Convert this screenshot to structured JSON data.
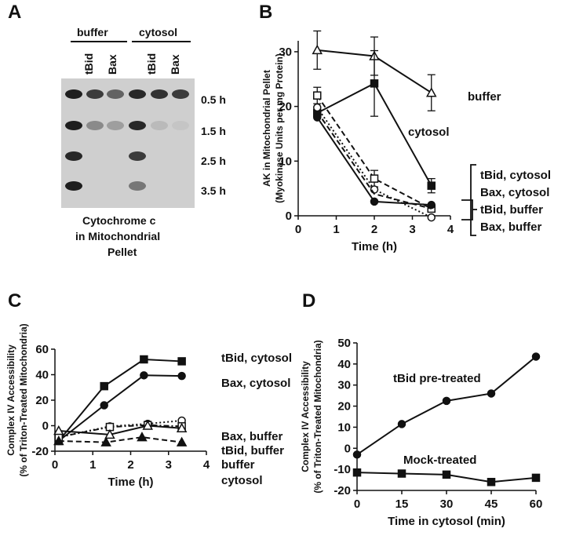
{
  "panels": {
    "A": {
      "letter": "A",
      "groups": [
        "buffer",
        "cytosol"
      ],
      "lanes": [
        "tBid",
        "Bax",
        "tBid",
        "Bax"
      ],
      "times": [
        "0.5 h",
        "1.5 h",
        "2.5 h",
        "3.5 h"
      ],
      "caption": [
        "Cytochrome c",
        "in Mitochondrial",
        "Pellet"
      ],
      "band_intensity": [
        [
          0.9,
          0.75,
          0.55,
          0.85,
          0.8,
          0.75
        ],
        [
          0.9,
          0.35,
          0.25,
          0.85,
          0.1,
          0.05
        ],
        [
          0.85,
          0.0,
          0.0,
          0.75,
          0.0,
          0.0
        ],
        [
          0.9,
          0.0,
          0.0,
          0.45,
          0.0,
          0.0
        ]
      ]
    },
    "B": {
      "letter": "B",
      "group_label": [
        "tBid, cytosol",
        "Bax, cytosol",
        "tBid, buffer",
        "Bax, buffer"
      ]
    },
    "C": {
      "letter": "C"
    },
    "D": {
      "letter": "D"
    }
  },
  "chart_data": [
    {
      "panel": "B",
      "type": "line",
      "ylabel": "AK in Mitochondrial Pellet",
      "ylabel2": "(Myokinase Units per mg Protein)",
      "xlabel": "Time (h)",
      "xlim": [
        0,
        4
      ],
      "ylim": [
        0,
        32
      ],
      "xticks": [
        0,
        1,
        2,
        3,
        4
      ],
      "yticks": [
        0,
        10,
        20,
        30
      ],
      "series": [
        {
          "name": "buffer",
          "marker": "triangle-open",
          "dash": "solid",
          "x": [
            0.5,
            2.0,
            3.5
          ],
          "y": [
            30.3,
            29.2,
            22.5
          ],
          "err": [
            3.5,
            3.5,
            3.3
          ]
        },
        {
          "name": "cytosol",
          "marker": "square-filled",
          "dash": "solid",
          "x": [
            0.5,
            2.0,
            3.5
          ],
          "y": [
            18.8,
            24.2,
            5.5
          ],
          "err": [
            0,
            6.0,
            1.3
          ]
        },
        {
          "marker": "square-open",
          "dash": "dashed",
          "x": [
            0.5,
            2.0,
            3.5
          ],
          "y": [
            22.0,
            6.8,
            1.3
          ],
          "err": [
            1.5,
            1.5,
            0
          ]
        },
        {
          "marker": "circle-open",
          "dash": "dotted",
          "x": [
            0.5,
            2.0,
            3.5
          ],
          "y": [
            19.8,
            4.8,
            -0.3
          ],
          "err": [
            0,
            0,
            0
          ]
        },
        {
          "marker": "circle-filled",
          "dash": "solid",
          "x": [
            0.5,
            2.0,
            3.5
          ],
          "y": [
            18.0,
            2.6,
            2.0
          ],
          "err": [
            0,
            0,
            0
          ]
        },
        {
          "marker": "none",
          "dash": "dashed",
          "x": [
            0.5,
            2.0,
            3.5
          ],
          "y": [
            19.0,
            4.0,
            1.3
          ],
          "err": [
            0,
            0,
            0
          ]
        }
      ]
    },
    {
      "panel": "C",
      "type": "line",
      "ylabel": "Complex IV Accessibility",
      "ylabel2": "(% of Triton-Treated Mitochondria)",
      "xlabel": "Time (h)",
      "xlim": [
        0,
        4
      ],
      "ylim": [
        -20,
        60
      ],
      "xticks": [
        0,
        1,
        2,
        3,
        4
      ],
      "yticks": [
        -20,
        0,
        20,
        40,
        60
      ],
      "series": [
        {
          "name": "tBid, cytosol",
          "marker": "square-filled",
          "dash": "solid",
          "x": [
            0.1,
            1.3,
            2.35,
            3.35
          ],
          "y": [
            -12,
            31,
            52,
            50.5
          ]
        },
        {
          "name": "Bax, cytosol",
          "marker": "circle-filled",
          "dash": "solid",
          "x": [
            0.1,
            1.3,
            2.35,
            3.35
          ],
          "y": [
            -12,
            16,
            39.5,
            39
          ]
        },
        {
          "name": "Bax, buffer",
          "marker": "circle-open",
          "dash": "dotted",
          "x": [
            0.1,
            1.45,
            2.45,
            3.35
          ],
          "y": [
            -9,
            -0.5,
            1.5,
            4
          ]
        },
        {
          "name": "tBid, buffer",
          "marker": "square-open",
          "dash": "dashdot",
          "x": [
            0.1,
            1.45,
            2.45,
            3.35
          ],
          "y": [
            -9,
            -1,
            0.5,
            -0.5
          ]
        },
        {
          "name": "buffer",
          "marker": "triangle-open",
          "dash": "solid",
          "x": [
            0.1,
            1.45,
            2.45,
            3.35
          ],
          "y": [
            -4,
            -7,
            0,
            -2
          ]
        },
        {
          "name": "cytosol",
          "marker": "triangle-filled",
          "dash": "dashed",
          "x": [
            0.1,
            1.35,
            2.3,
            3.35
          ],
          "y": [
            -12,
            -13,
            -9,
            -13
          ]
        }
      ]
    },
    {
      "panel": "D",
      "type": "line",
      "ylabel": "Complex IV Accessibility",
      "ylabel2": "(% of Triton-Treated Mitochondria)",
      "xlabel": "Time in cytosol (min)",
      "xlim": [
        0,
        60
      ],
      "ylim": [
        -20,
        50
      ],
      "xticks": [
        0,
        15,
        30,
        45,
        60
      ],
      "yticks": [
        -20,
        -10,
        0,
        10,
        20,
        30,
        40,
        50
      ],
      "series": [
        {
          "name": "tBid pre-treated",
          "marker": "circle-filled",
          "dash": "solid",
          "x": [
            0,
            15,
            30,
            45,
            60
          ],
          "y": [
            -3,
            11.5,
            22.5,
            26,
            43.5
          ]
        },
        {
          "name": "Mock-treated",
          "marker": "square-filled",
          "dash": "solid",
          "x": [
            0,
            15,
            30,
            45,
            60
          ],
          "y": [
            -11.5,
            -12,
            -12.5,
            -16,
            -14
          ]
        }
      ]
    }
  ]
}
